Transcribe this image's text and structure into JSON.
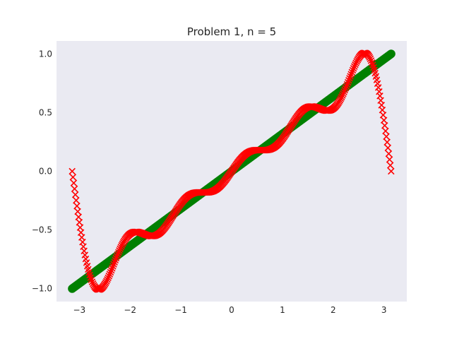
{
  "chart_data": {
    "type": "scatter",
    "title": "Problem 1, n = 5",
    "xlabel": "",
    "ylabel": "",
    "xlim": [
      -3.45,
      3.45
    ],
    "ylim": [
      -1.11,
      1.11
    ],
    "xticks": [
      -3,
      -2,
      -1,
      0,
      1,
      2,
      3
    ],
    "xtick_labels": [
      "−3",
      "−2",
      "−1",
      "0",
      "1",
      "2",
      "3"
    ],
    "yticks": [
      -1.0,
      -0.5,
      0.0,
      0.5,
      1.0
    ],
    "ytick_labels": [
      "−1.0",
      "−0.5",
      "0.0",
      "0.5",
      "1.0"
    ],
    "grid": false,
    "background": "#eaeaf2",
    "series": [
      {
        "marker": "circle",
        "color": "#008000",
        "function": "y = x / pi",
        "x_range": [
          -3.14159,
          3.14159
        ],
        "y_range": [
          -1.0,
          1.0
        ]
      },
      {
        "marker": "x",
        "color": "#ff0000",
        "function": "y = (2/pi) * sum_{k=1}^{5} (-1)^(k+1) sin(k x) / k",
        "x_range": [
          -3.14159,
          3.14159
        ],
        "y_range": [
          -1.01,
          1.01
        ]
      }
    ]
  }
}
